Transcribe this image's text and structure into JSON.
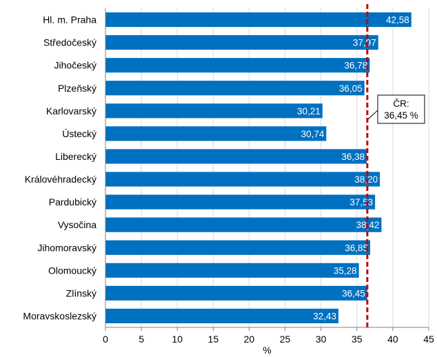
{
  "chart_data": {
    "type": "bar",
    "orientation": "horizontal",
    "categories": [
      "Hl. m. Praha",
      "Středočeský",
      "Jihočeský",
      "Plzeňský",
      "Karlovarský",
      "Ústecký",
      "Liberecký",
      "Královéhradecký",
      "Pardubický",
      "Vysočina",
      "Jihomoravský",
      "Olomoucký",
      "Zlínský",
      "Moravskoslezský"
    ],
    "values": [
      42.58,
      37.97,
      36.78,
      36.05,
      30.21,
      30.74,
      36.38,
      38.2,
      37.53,
      38.42,
      36.85,
      35.28,
      36.45,
      32.43
    ],
    "value_labels": [
      "42,58",
      "37,97",
      "36,78",
      "36,05",
      "30,21",
      "30,74",
      "36,38",
      "38,20",
      "37,53",
      "38,42",
      "36,85",
      "35,28",
      "36,45",
      "32,43"
    ],
    "xlabel": "%",
    "xlim": [
      0,
      45
    ],
    "x_ticks": [
      0,
      5,
      10,
      15,
      20,
      25,
      30,
      35,
      40,
      45
    ],
    "grid": "vertical",
    "bar_color": "#0070c0",
    "reference_line": {
      "value": 36.45,
      "color": "#c00000",
      "style": "dashed",
      "label_line1": "ČR:",
      "label_line2": "36,45 %"
    }
  }
}
